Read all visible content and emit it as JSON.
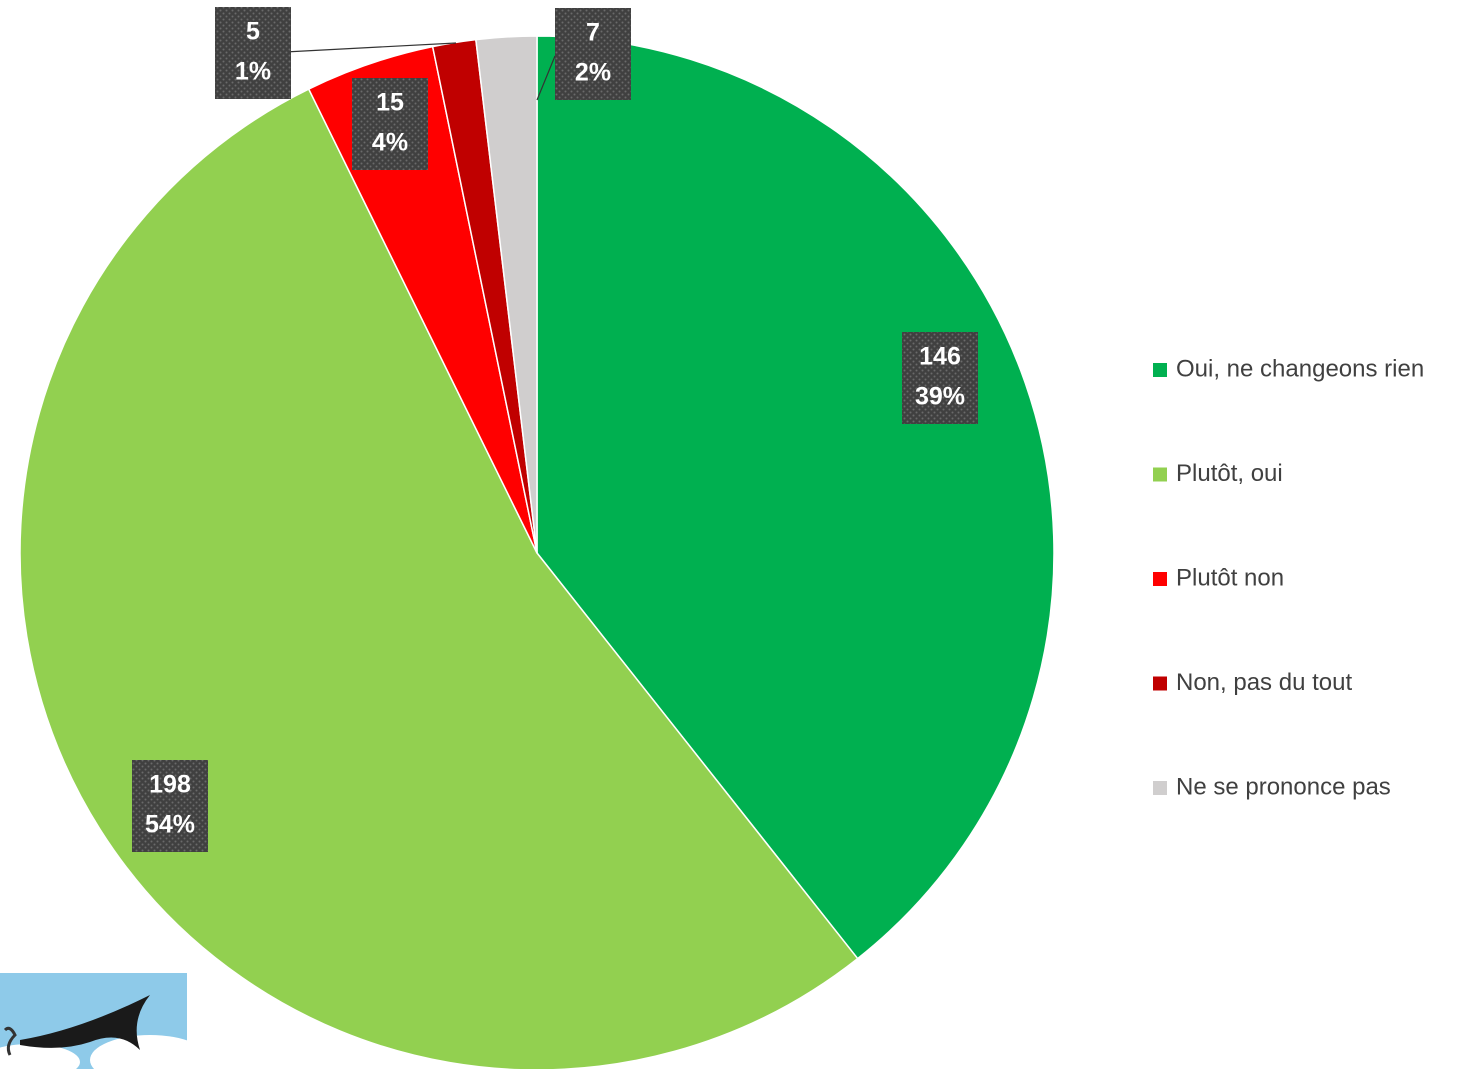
{
  "chart_data": {
    "type": "pie",
    "categories": [
      "Oui, ne changeons rien",
      "Plutôt, oui",
      "Plutôt non",
      "Non, pas du tout",
      "Ne se prononce pas"
    ],
    "values": [
      146,
      198,
      15,
      5,
      7
    ],
    "percent_labels": [
      "39%",
      "54%",
      "4%",
      "1%",
      "2%"
    ],
    "colors": [
      "#00b050",
      "#92d050",
      "#ff0000",
      "#c00000",
      "#d0cece"
    ],
    "legend": "right"
  }
}
